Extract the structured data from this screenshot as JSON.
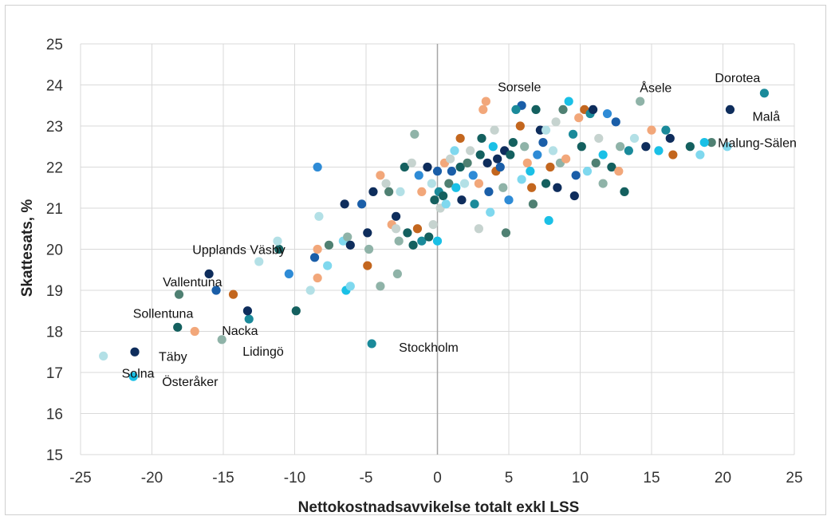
{
  "chart_data": {
    "type": "scatter",
    "title": "",
    "xlabel": "Nettokostnadsavvikelse totalt exkl LSS",
    "ylabel": "Skattesats, %",
    "xlim": [
      -25,
      25
    ],
    "ylim": [
      15,
      25
    ],
    "xticks": [
      "-25",
      "-20",
      "-15",
      "-10",
      "-5",
      "0",
      "5",
      "10",
      "15",
      "20",
      "25"
    ],
    "yticks": [
      "15",
      "16",
      "17",
      "18",
      "19",
      "20",
      "21",
      "22",
      "23",
      "24",
      "25"
    ],
    "grid": true,
    "colors": [
      "#0e2d5c",
      "#1a5ea8",
      "#2e8bd6",
      "#1ac0e6",
      "#7fd8ee",
      "#b3e0e6",
      "#c6d3cf",
      "#8fb3a8",
      "#4f8072",
      "#14605f",
      "#1a8a9a",
      "#c3661e",
      "#f2a77a"
    ],
    "labeled_points": [
      {
        "label": "Dorotea",
        "x": 22.9,
        "y": 23.8
      },
      {
        "label": "Malå",
        "x": 20.5,
        "y": 23.4
      },
      {
        "label": "Åsele",
        "x": 16.3,
        "y": 22.7
      },
      {
        "label": "Sorsele",
        "x": 5.9,
        "y": 23.5
      },
      {
        "label": "Malung-Sälen",
        "x": 19.2,
        "y": 22.6
      },
      {
        "label": "Upplands Väsby",
        "x": -11.1,
        "y": 20.0
      },
      {
        "label": "Vallentuna",
        "x": -18.1,
        "y": 18.9
      },
      {
        "label": "Sollentuna",
        "x": -18.2,
        "y": 18.1
      },
      {
        "label": "Nacka",
        "x": -13.2,
        "y": 18.3
      },
      {
        "label": "Lidingö",
        "x": -15.1,
        "y": 17.8
      },
      {
        "label": "Täby",
        "x": -21.2,
        "y": 17.5
      },
      {
        "label": "Solna",
        "x": -23.4,
        "y": 17.4
      },
      {
        "label": "Österåker",
        "x": -21.3,
        "y": 16.9
      },
      {
        "label": "Stockholm",
        "x": -4.6,
        "y": 17.7
      }
    ],
    "points": [
      {
        "x": 22.9,
        "y": 23.8,
        "c": 10
      },
      {
        "x": 20.5,
        "y": 23.4,
        "c": 0
      },
      {
        "x": 16.3,
        "y": 22.7,
        "c": 0
      },
      {
        "x": 5.9,
        "y": 23.5,
        "c": 1
      },
      {
        "x": 19.2,
        "y": 22.6,
        "c": 8
      },
      {
        "x": -11.1,
        "y": 20.0,
        "c": 9
      },
      {
        "x": -18.1,
        "y": 18.9,
        "c": 8
      },
      {
        "x": -18.2,
        "y": 18.1,
        "c": 9
      },
      {
        "x": -13.2,
        "y": 18.3,
        "c": 10
      },
      {
        "x": -15.1,
        "y": 17.8,
        "c": 7
      },
      {
        "x": -21.2,
        "y": 17.5,
        "c": 0
      },
      {
        "x": -23.4,
        "y": 17.4,
        "c": 5
      },
      {
        "x": -21.3,
        "y": 16.9,
        "c": 3
      },
      {
        "x": -4.6,
        "y": 17.7,
        "c": 10
      },
      {
        "x": -16.0,
        "y": 19.4,
        "c": 0
      },
      {
        "x": -15.5,
        "y": 19.0,
        "c": 1
      },
      {
        "x": -14.3,
        "y": 18.9,
        "c": 11
      },
      {
        "x": -17.0,
        "y": 18.0,
        "c": 12
      },
      {
        "x": -13.3,
        "y": 18.5,
        "c": 0
      },
      {
        "x": -9.9,
        "y": 18.5,
        "c": 9
      },
      {
        "x": -12.5,
        "y": 19.7,
        "c": 5
      },
      {
        "x": -11.2,
        "y": 20.2,
        "c": 5
      },
      {
        "x": -10.4,
        "y": 19.4,
        "c": 2
      },
      {
        "x": -8.9,
        "y": 19.0,
        "c": 5
      },
      {
        "x": -8.4,
        "y": 19.3,
        "c": 12
      },
      {
        "x": -7.7,
        "y": 19.6,
        "c": 4
      },
      {
        "x": -8.6,
        "y": 19.8,
        "c": 1
      },
      {
        "x": -8.4,
        "y": 20.0,
        "c": 12
      },
      {
        "x": -7.6,
        "y": 20.1,
        "c": 8
      },
      {
        "x": -6.6,
        "y": 20.2,
        "c": 4
      },
      {
        "x": -6.3,
        "y": 20.3,
        "c": 7
      },
      {
        "x": -6.1,
        "y": 20.1,
        "c": 0
      },
      {
        "x": -6.4,
        "y": 19.0,
        "c": 3
      },
      {
        "x": -6.1,
        "y": 19.1,
        "c": 4
      },
      {
        "x": -4.0,
        "y": 19.1,
        "c": 7
      },
      {
        "x": -4.9,
        "y": 19.6,
        "c": 11
      },
      {
        "x": -2.8,
        "y": 19.4,
        "c": 7
      },
      {
        "x": -4.8,
        "y": 20.0,
        "c": 7
      },
      {
        "x": -4.9,
        "y": 20.4,
        "c": 0
      },
      {
        "x": -8.4,
        "y": 22.0,
        "c": 2
      },
      {
        "x": -8.3,
        "y": 20.8,
        "c": 5
      },
      {
        "x": -5.3,
        "y": 21.1,
        "c": 1
      },
      {
        "x": -6.5,
        "y": 21.1,
        "c": 0
      },
      {
        "x": -4.5,
        "y": 21.4,
        "c": 0
      },
      {
        "x": -4.0,
        "y": 21.8,
        "c": 12
      },
      {
        "x": -3.6,
        "y": 21.6,
        "c": 6
      },
      {
        "x": -3.4,
        "y": 21.4,
        "c": 8
      },
      {
        "x": -2.9,
        "y": 20.8,
        "c": 0
      },
      {
        "x": -3.2,
        "y": 20.6,
        "c": 12
      },
      {
        "x": -2.9,
        "y": 20.5,
        "c": 6
      },
      {
        "x": -2.7,
        "y": 20.2,
        "c": 7
      },
      {
        "x": -2.1,
        "y": 20.4,
        "c": 9
      },
      {
        "x": -1.7,
        "y": 20.1,
        "c": 9
      },
      {
        "x": -1.4,
        "y": 20.5,
        "c": 11
      },
      {
        "x": -1.1,
        "y": 20.2,
        "c": 10
      },
      {
        "x": -0.6,
        "y": 20.3,
        "c": 9
      },
      {
        "x": 0.0,
        "y": 20.2,
        "c": 3
      },
      {
        "x": -0.3,
        "y": 20.6,
        "c": 6
      },
      {
        "x": -2.6,
        "y": 21.4,
        "c": 5
      },
      {
        "x": -2.3,
        "y": 22.0,
        "c": 9
      },
      {
        "x": -1.8,
        "y": 22.1,
        "c": 6
      },
      {
        "x": -1.6,
        "y": 22.8,
        "c": 7
      },
      {
        "x": -1.3,
        "y": 21.8,
        "c": 2
      },
      {
        "x": -1.1,
        "y": 21.4,
        "c": 12
      },
      {
        "x": -0.7,
        "y": 22.0,
        "c": 0
      },
      {
        "x": -0.4,
        "y": 21.6,
        "c": 5
      },
      {
        "x": 0.0,
        "y": 21.9,
        "c": 1
      },
      {
        "x": 0.1,
        "y": 21.4,
        "c": 10
      },
      {
        "x": -0.2,
        "y": 21.2,
        "c": 9
      },
      {
        "x": 0.2,
        "y": 21.0,
        "c": 6
      },
      {
        "x": 0.4,
        "y": 21.3,
        "c": 9
      },
      {
        "x": 0.6,
        "y": 21.1,
        "c": 4
      },
      {
        "x": 0.8,
        "y": 21.6,
        "c": 8
      },
      {
        "x": 0.5,
        "y": 22.1,
        "c": 12
      },
      {
        "x": 0.9,
        "y": 22.2,
        "c": 6
      },
      {
        "x": 1.0,
        "y": 21.9,
        "c": 1
      },
      {
        "x": 1.2,
        "y": 22.4,
        "c": 4
      },
      {
        "x": 1.3,
        "y": 21.5,
        "c": 3
      },
      {
        "x": 1.6,
        "y": 22.0,
        "c": 9
      },
      {
        "x": 1.6,
        "y": 22.7,
        "c": 11
      },
      {
        "x": 1.7,
        "y": 21.2,
        "c": 0
      },
      {
        "x": 1.9,
        "y": 21.6,
        "c": 5
      },
      {
        "x": 2.1,
        "y": 22.1,
        "c": 8
      },
      {
        "x": 2.3,
        "y": 22.4,
        "c": 6
      },
      {
        "x": 2.5,
        "y": 21.8,
        "c": 2
      },
      {
        "x": 2.6,
        "y": 21.1,
        "c": 10
      },
      {
        "x": 2.9,
        "y": 21.6,
        "c": 12
      },
      {
        "x": 3.0,
        "y": 22.3,
        "c": 9
      },
      {
        "x": 3.1,
        "y": 22.7,
        "c": 9
      },
      {
        "x": 3.2,
        "y": 23.4,
        "c": 12
      },
      {
        "x": 3.4,
        "y": 23.6,
        "c": 12
      },
      {
        "x": 3.5,
        "y": 22.1,
        "c": 0
      },
      {
        "x": 3.6,
        "y": 21.4,
        "c": 1
      },
      {
        "x": 3.7,
        "y": 20.9,
        "c": 4
      },
      {
        "x": 3.9,
        "y": 22.5,
        "c": 3
      },
      {
        "x": 4.0,
        "y": 22.9,
        "c": 6
      },
      {
        "x": 4.1,
        "y": 21.9,
        "c": 11
      },
      {
        "x": 4.2,
        "y": 22.2,
        "c": 0
      },
      {
        "x": 4.4,
        "y": 22.0,
        "c": 1
      },
      {
        "x": 4.6,
        "y": 21.5,
        "c": 7
      },
      {
        "x": 4.7,
        "y": 22.4,
        "c": 0
      },
      {
        "x": 4.8,
        "y": 20.4,
        "c": 8
      },
      {
        "x": 5.0,
        "y": 21.2,
        "c": 2
      },
      {
        "x": 5.1,
        "y": 22.3,
        "c": 9
      },
      {
        "x": 5.3,
        "y": 22.6,
        "c": 9
      },
      {
        "x": 5.5,
        "y": 23.4,
        "c": 10
      },
      {
        "x": 5.8,
        "y": 23.0,
        "c": 11
      },
      {
        "x": 5.9,
        "y": 21.7,
        "c": 4
      },
      {
        "x": 6.1,
        "y": 22.5,
        "c": 7
      },
      {
        "x": 6.3,
        "y": 22.1,
        "c": 12
      },
      {
        "x": 6.5,
        "y": 21.9,
        "c": 3
      },
      {
        "x": 6.7,
        "y": 21.1,
        "c": 8
      },
      {
        "x": 6.9,
        "y": 23.4,
        "c": 9
      },
      {
        "x": 7.0,
        "y": 22.3,
        "c": 2
      },
      {
        "x": 7.2,
        "y": 22.9,
        "c": 0
      },
      {
        "x": 7.4,
        "y": 22.6,
        "c": 1
      },
      {
        "x": 7.6,
        "y": 21.6,
        "c": 9
      },
      {
        "x": 7.8,
        "y": 20.7,
        "c": 3
      },
      {
        "x": 7.9,
        "y": 22.0,
        "c": 11
      },
      {
        "x": 8.1,
        "y": 22.4,
        "c": 5
      },
      {
        "x": 8.3,
        "y": 23.1,
        "c": 6
      },
      {
        "x": 8.4,
        "y": 21.5,
        "c": 0
      },
      {
        "x": 8.6,
        "y": 22.1,
        "c": 7
      },
      {
        "x": 8.8,
        "y": 23.4,
        "c": 8
      },
      {
        "x": 9.0,
        "y": 22.2,
        "c": 12
      },
      {
        "x": 9.2,
        "y": 23.6,
        "c": 3
      },
      {
        "x": 9.5,
        "y": 22.8,
        "c": 10
      },
      {
        "x": 9.7,
        "y": 21.8,
        "c": 1
      },
      {
        "x": 9.9,
        "y": 23.2,
        "c": 12
      },
      {
        "x": 10.1,
        "y": 22.5,
        "c": 9
      },
      {
        "x": 10.3,
        "y": 23.4,
        "c": 11
      },
      {
        "x": 10.5,
        "y": 21.9,
        "c": 4
      },
      {
        "x": 10.7,
        "y": 23.3,
        "c": 10
      },
      {
        "x": 10.9,
        "y": 23.4,
        "c": 0
      },
      {
        "x": 11.1,
        "y": 22.1,
        "c": 8
      },
      {
        "x": 11.3,
        "y": 22.7,
        "c": 6
      },
      {
        "x": 11.6,
        "y": 22.3,
        "c": 3
      },
      {
        "x": 11.9,
        "y": 23.3,
        "c": 2
      },
      {
        "x": 12.2,
        "y": 22.0,
        "c": 9
      },
      {
        "x": 12.5,
        "y": 23.1,
        "c": 1
      },
      {
        "x": 12.8,
        "y": 22.5,
        "c": 7
      },
      {
        "x": 13.1,
        "y": 21.4,
        "c": 9
      },
      {
        "x": 13.4,
        "y": 22.4,
        "c": 10
      },
      {
        "x": 13.8,
        "y": 22.7,
        "c": 5
      },
      {
        "x": 14.2,
        "y": 23.6,
        "c": 7
      },
      {
        "x": 14.6,
        "y": 22.5,
        "c": 0
      },
      {
        "x": 15.0,
        "y": 22.9,
        "c": 12
      },
      {
        "x": 15.5,
        "y": 22.4,
        "c": 3
      },
      {
        "x": 16.0,
        "y": 22.9,
        "c": 10
      },
      {
        "x": 16.5,
        "y": 22.3,
        "c": 11
      },
      {
        "x": 17.7,
        "y": 22.5,
        "c": 9
      },
      {
        "x": 18.4,
        "y": 22.3,
        "c": 4
      },
      {
        "x": 18.7,
        "y": 22.6,
        "c": 3
      },
      {
        "x": 20.3,
        "y": 22.5,
        "c": 4
      },
      {
        "x": 9.6,
        "y": 21.3,
        "c": 0
      },
      {
        "x": 11.6,
        "y": 21.6,
        "c": 7
      },
      {
        "x": 12.7,
        "y": 21.9,
        "c": 12
      },
      {
        "x": 7.6,
        "y": 22.9,
        "c": 5
      },
      {
        "x": 6.6,
        "y": 21.5,
        "c": 11
      },
      {
        "x": 2.9,
        "y": 20.5,
        "c": 6
      }
    ]
  }
}
